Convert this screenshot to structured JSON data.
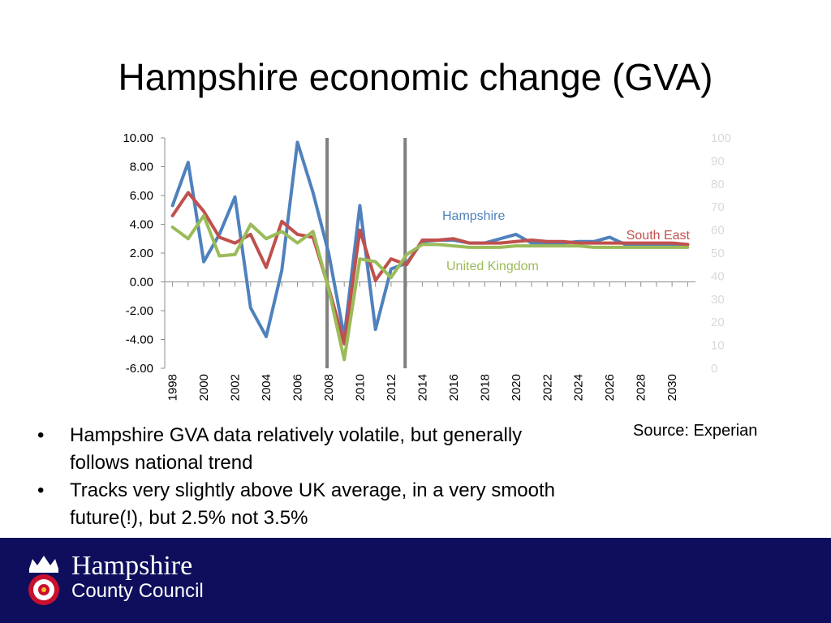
{
  "title": "Hampshire economic change (GVA)",
  "chart_data": {
    "type": "line",
    "x": [
      1998,
      1999,
      2000,
      2001,
      2002,
      2003,
      2004,
      2005,
      2006,
      2007,
      2008,
      2009,
      2010,
      2011,
      2012,
      2013,
      2014,
      2015,
      2016,
      2017,
      2018,
      2019,
      2020,
      2021,
      2022,
      2023,
      2024,
      2025,
      2026,
      2027,
      2028,
      2029,
      2030,
      2031
    ],
    "x_tick_labels": [
      "1998",
      "2000",
      "2002",
      "2004",
      "2006",
      "2008",
      "2010",
      "2012",
      "2014",
      "2016",
      "2018",
      "2020",
      "2022",
      "2024",
      "2026",
      "2028",
      "2030"
    ],
    "y_tick_labels": [
      "10.00",
      "8.00",
      "6.00",
      "4.00",
      "2.00",
      "0.00",
      "-2.00",
      "-4.00",
      "-6.00"
    ],
    "ylim": [
      -6,
      10
    ],
    "y2_tick_labels": [
      "100",
      "90",
      "80",
      "70",
      "60",
      "50",
      "40",
      "30",
      "20",
      "10",
      "0"
    ],
    "y2lim": [
      0,
      100
    ],
    "vertical_markers": [
      2007.9,
      2012.9
    ],
    "grid": false,
    "series": [
      {
        "name": "Hampshire",
        "color": "#4f81bd",
        "values": [
          5.3,
          8.3,
          1.4,
          3.3,
          5.9,
          -1.8,
          -3.8,
          0.8,
          9.7,
          6.2,
          2.0,
          -3.8,
          5.3,
          -3.3,
          0.9,
          1.3,
          2.8,
          2.9,
          2.9,
          2.7,
          2.7,
          3.0,
          3.3,
          2.7,
          2.7,
          2.7,
          2.8,
          2.8,
          3.1,
          2.6,
          2.6,
          2.6,
          2.6,
          2.6
        ]
      },
      {
        "name": "South East",
        "color": "#c0504d",
        "values": [
          4.6,
          6.2,
          4.9,
          3.1,
          2.7,
          3.3,
          1.0,
          4.2,
          3.3,
          3.1,
          -0.4,
          -4.3,
          3.6,
          0.1,
          1.6,
          1.2,
          2.9,
          2.9,
          3.0,
          2.7,
          2.7,
          2.7,
          2.8,
          2.9,
          2.8,
          2.8,
          2.7,
          2.7,
          2.7,
          2.7,
          2.7,
          2.7,
          2.7,
          2.6
        ]
      },
      {
        "name": "United Kingdom",
        "color": "#9bbb59",
        "values": [
          3.8,
          3.0,
          4.6,
          1.8,
          1.9,
          4.0,
          3.0,
          3.5,
          2.7,
          3.5,
          -0.5,
          -5.4,
          1.6,
          1.4,
          0.3,
          1.9,
          2.6,
          2.6,
          2.5,
          2.4,
          2.4,
          2.4,
          2.5,
          2.5,
          2.5,
          2.5,
          2.5,
          2.4,
          2.4,
          2.4,
          2.4,
          2.4,
          2.4,
          2.4
        ]
      }
    ]
  },
  "bullets": [
    "Hampshire GVA data relatively volatile, but generally follows national trend",
    "Tracks very slightly above UK average, in a very smooth future(!), but 2.5% not 3.5%"
  ],
  "source": "Source: Experian",
  "footer": {
    "line1": "Hampshire",
    "line2": "County Council",
    "crest_icon": "hampshire-rose-crest-icon",
    "background": "#0e0e5c"
  }
}
